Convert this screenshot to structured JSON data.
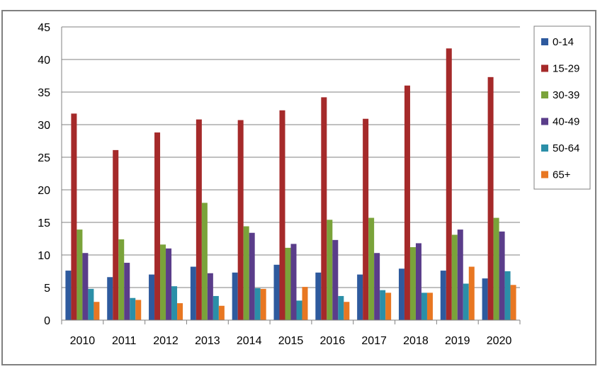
{
  "chart_data": {
    "type": "bar",
    "categories": [
      "2010",
      "2011",
      "2012",
      "2013",
      "2014",
      "2015",
      "2016",
      "2017",
      "2018",
      "2019",
      "2020"
    ],
    "series": [
      {
        "name": "0-14",
        "color": "#2E5A9E",
        "values": [
          7.6,
          6.6,
          7.0,
          8.2,
          7.3,
          8.5,
          7.3,
          7.0,
          7.9,
          7.6,
          6.4
        ]
      },
      {
        "name": "15-29",
        "color": "#A52A2A",
        "values": [
          31.7,
          26.1,
          28.8,
          30.8,
          30.7,
          32.2,
          34.2,
          30.9,
          36.0,
          41.7,
          37.3
        ]
      },
      {
        "name": "30-39",
        "color": "#7AA33A",
        "values": [
          13.9,
          12.4,
          11.6,
          18.0,
          14.4,
          11.1,
          15.4,
          15.7,
          11.2,
          13.1,
          15.7
        ]
      },
      {
        "name": "40-49",
        "color": "#5A3D8A",
        "values": [
          10.3,
          8.8,
          11.0,
          7.2,
          13.4,
          11.7,
          12.3,
          10.3,
          11.8,
          13.9,
          13.6
        ]
      },
      {
        "name": "50-64",
        "color": "#2B8FA8",
        "values": [
          4.8,
          3.4,
          5.2,
          3.7,
          4.9,
          3.0,
          3.7,
          4.6,
          4.2,
          5.6,
          7.5
        ]
      },
      {
        "name": "65+",
        "color": "#E87722",
        "values": [
          2.8,
          3.1,
          2.6,
          2.2,
          4.8,
          5.1,
          2.8,
          4.2,
          4.2,
          8.2,
          5.4
        ]
      }
    ],
    "ylim": [
      0,
      45
    ],
    "yticks": [
      0,
      5,
      10,
      15,
      20,
      25,
      30,
      35,
      40,
      45
    ],
    "grid": true,
    "legend": "right",
    "title": "",
    "xlabel": "",
    "ylabel": ""
  }
}
